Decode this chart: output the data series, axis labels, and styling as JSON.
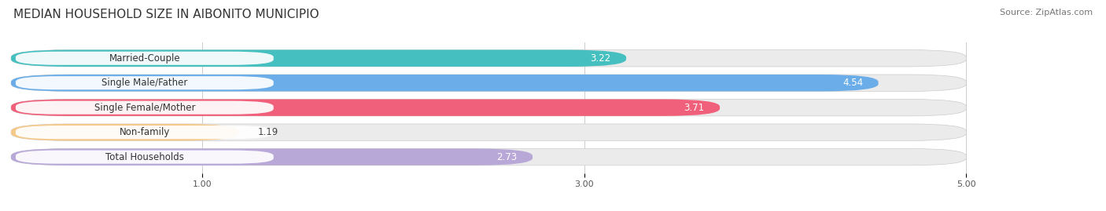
{
  "title": "MEDIAN HOUSEHOLD SIZE IN AIBONITO MUNICIPIO",
  "source": "Source: ZipAtlas.com",
  "categories": [
    "Married-Couple",
    "Single Male/Father",
    "Single Female/Mother",
    "Non-family",
    "Total Households"
  ],
  "values": [
    3.22,
    4.54,
    3.71,
    1.19,
    2.73
  ],
  "bar_colors": [
    "#45bfbf",
    "#6aade8",
    "#f0607a",
    "#f5c98a",
    "#b8a8d8"
  ],
  "xlim_left": 0.0,
  "xlim_right": 5.5,
  "xdata_max": 5.0,
  "xticks": [
    1.0,
    3.0,
    5.0
  ],
  "background_color": "#ffffff",
  "bar_bg_color": "#ebebeb",
  "title_fontsize": 11,
  "source_fontsize": 8,
  "label_fontsize": 8.5,
  "value_fontsize": 8.5,
  "value_inside_threshold": 1.8
}
